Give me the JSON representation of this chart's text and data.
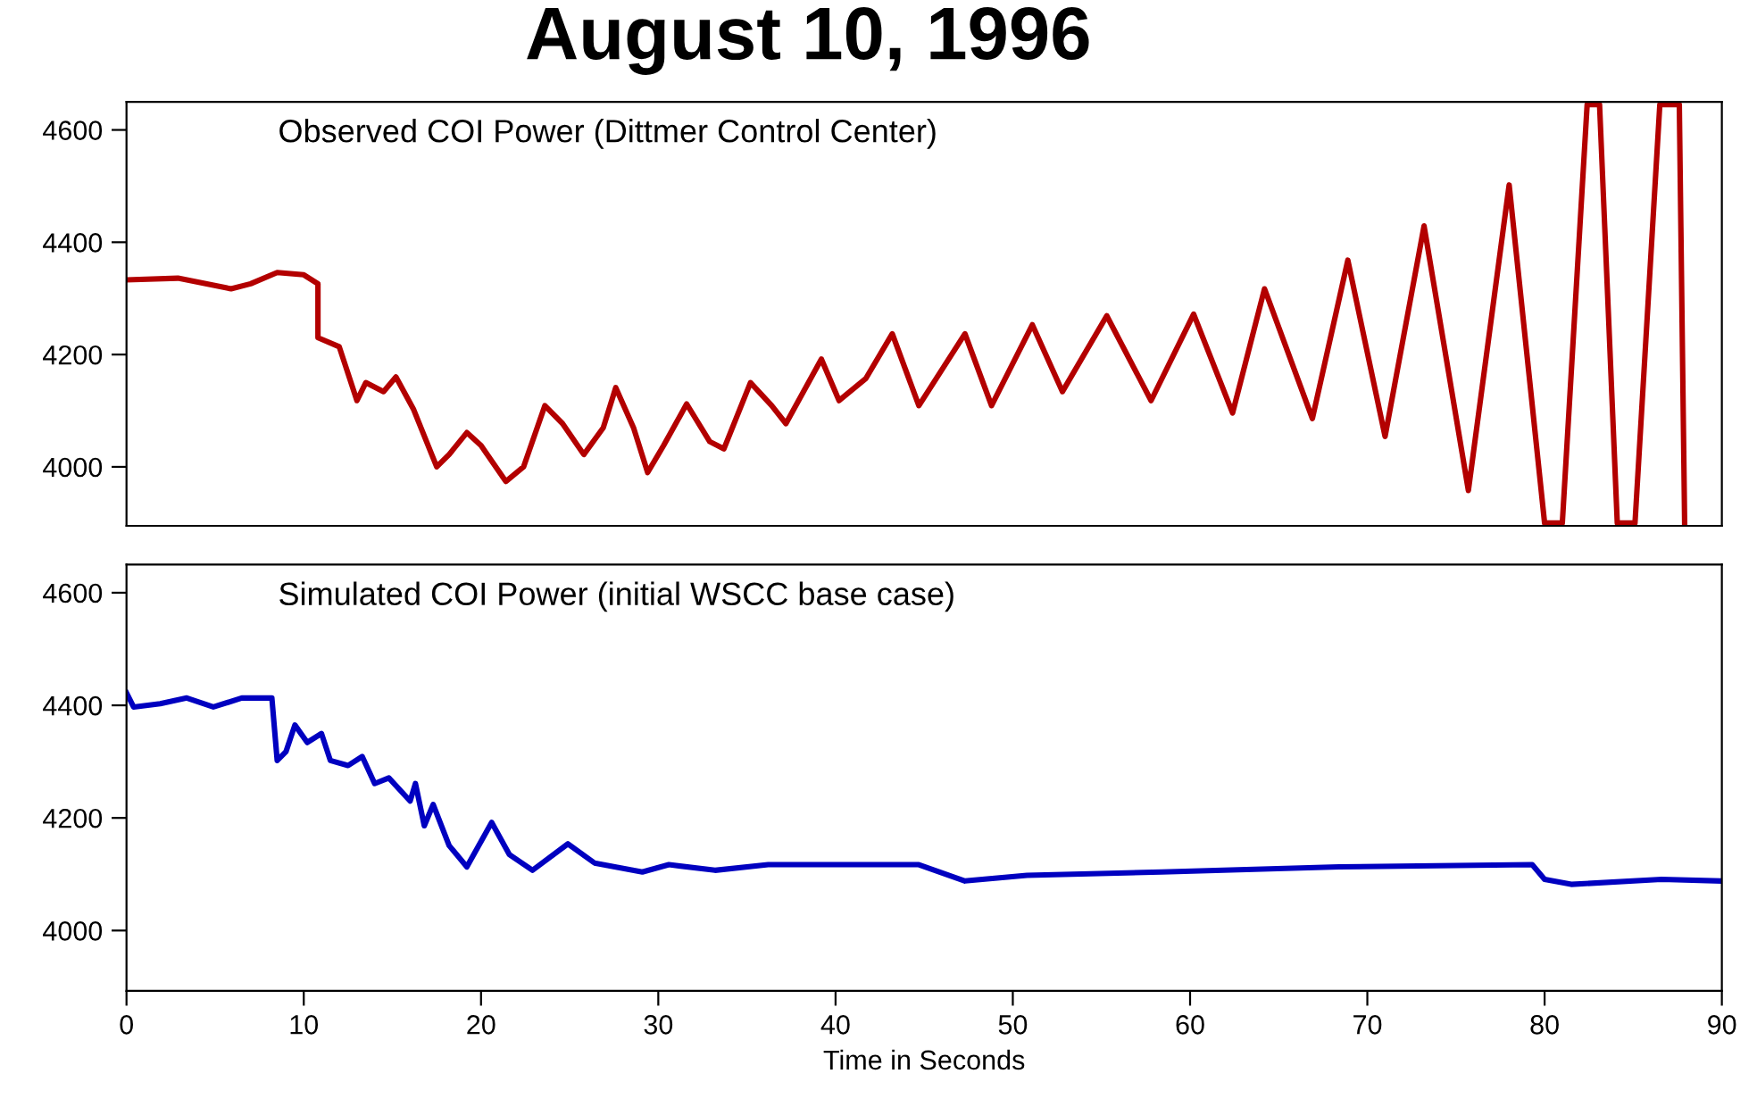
{
  "chart_data": [
    {
      "type": "line",
      "title": "August 10, 1996",
      "annotations": [
        "Observed COI Power (Dittmer Control Center)"
      ],
      "xlim": [
        0,
        90
      ],
      "xticks": [
        0,
        10,
        20,
        30,
        40,
        50,
        60,
        70,
        80,
        90
      ],
      "ylim": [
        3895,
        4650
      ],
      "yticks": [
        4000,
        4200,
        4400,
        4600
      ],
      "tick_labels": "y",
      "grid": false,
      "legend": false,
      "series": [
        {
          "color": "#b30000",
          "x": [
            0,
            2.9,
            5.9,
            7,
            8.5,
            10,
            10.8,
            10.8,
            12,
            13,
            13.5,
            14.5,
            15.2,
            16.2,
            17.5,
            18.2,
            19.2,
            20,
            21.4,
            22.4,
            23.6,
            24.6,
            25.8,
            26.9,
            27.6,
            28.6,
            29.4,
            30.3,
            31.6,
            32.9,
            33.7,
            35.2,
            36.4,
            37.2,
            39.2,
            40.2,
            41.7,
            43.2,
            44.7,
            47.3,
            48.8,
            51.1,
            52.8,
            55.3,
            57.8,
            60.2,
            62.4,
            64.2,
            66.9,
            68.9,
            71,
            73.2,
            75.7,
            78,
            80,
            81,
            82.4,
            83.1,
            84.1,
            85.1,
            86.5,
            87.6,
            87.9
          ],
          "values": [
            4333,
            4336,
            4317,
            4326,
            4346,
            4342,
            4326,
            4230,
            4214,
            4118,
            4150,
            4134,
            4160,
            4102,
            4000,
            4022,
            4061,
            4038,
            3974,
            4000,
            4109,
            4077,
            4022,
            4070,
            4141,
            4070,
            3990,
            4038,
            4112,
            4045,
            4032,
            4150,
            4109,
            4077,
            4192,
            4118,
            4157,
            4237,
            4109,
            4237,
            4109,
            4253,
            4134,
            4269,
            4118,
            4272,
            4096,
            4317,
            4086,
            4368,
            4054,
            4429,
            3958,
            4502,
            3900,
            3900,
            4645,
            4645,
            3900,
            3900,
            4645,
            4645,
            3900
          ]
        }
      ]
    },
    {
      "type": "line",
      "xlabel": "Time in Seconds",
      "annotations": [
        "Simulated COI Power (initial WSCC base case)"
      ],
      "xlim": [
        0,
        90
      ],
      "xticks": [
        0,
        10,
        20,
        30,
        40,
        50,
        60,
        70,
        80,
        90
      ],
      "ylim": [
        3893,
        4650
      ],
      "yticks": [
        4000,
        4200,
        4400,
        4600
      ],
      "grid": false,
      "legend": false,
      "series": [
        {
          "color": "#0000c0",
          "x": [
            0,
            0.4,
            1.9,
            3.4,
            4.9,
            6.5,
            8.2,
            8.5,
            9,
            9.5,
            10.2,
            11,
            11.5,
            12.5,
            13.3,
            14,
            14.8,
            16,
            16.3,
            16.8,
            17.3,
            18.2,
            19.2,
            20.6,
            21.6,
            22.9,
            24.9,
            26.4,
            29.1,
            30.6,
            33.2,
            36.2,
            44.7,
            47.3,
            50.8,
            58.4,
            68.4,
            79.3,
            80,
            81.5,
            86.6,
            90
          ],
          "values": [
            4422,
            4397,
            4403,
            4413,
            4397,
            4413,
            4413,
            4302,
            4318,
            4365,
            4334,
            4350,
            4302,
            4293,
            4309,
            4261,
            4271,
            4230,
            4261,
            4186,
            4224,
            4151,
            4113,
            4192,
            4135,
            4107,
            4154,
            4120,
            4104,
            4117,
            4107,
            4117,
            4117,
            4088,
            4098,
            4104,
            4113,
            4117,
            4091,
            4082,
            4091,
            4088
          ]
        }
      ]
    }
  ]
}
